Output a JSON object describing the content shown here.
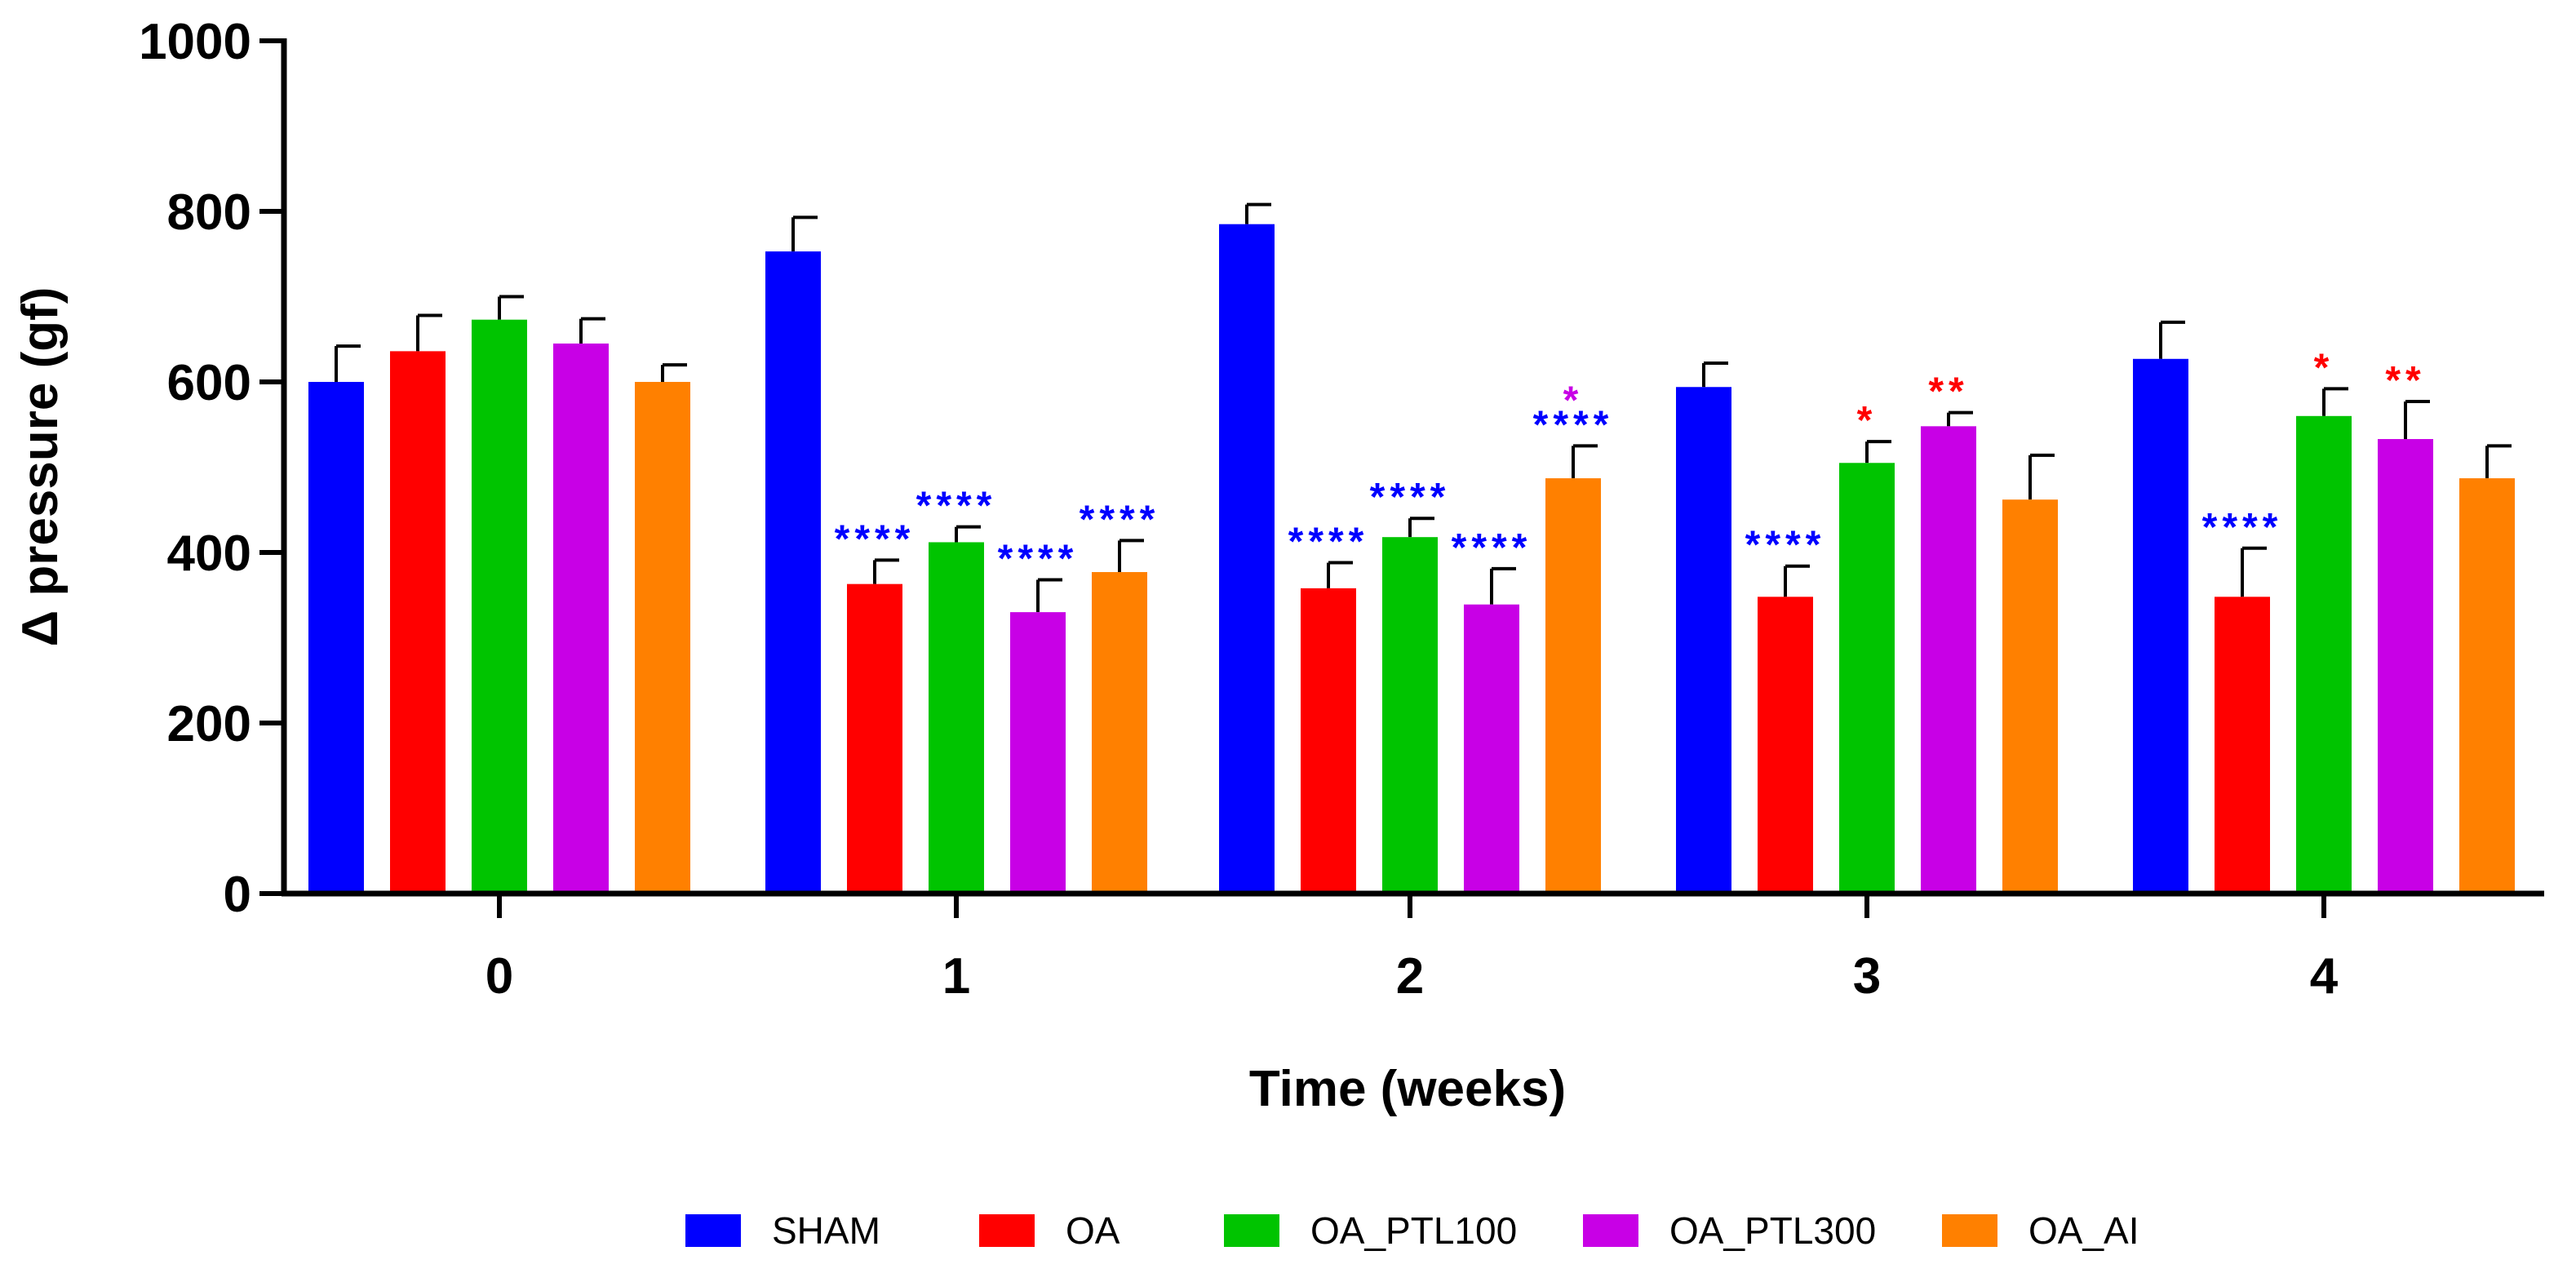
{
  "chart_data": {
    "type": "bar",
    "title": "",
    "xlabel": "Time (weeks)",
    "ylabel": "Δ pressure (gf)",
    "ylim": [
      0,
      1000
    ],
    "yticks": [
      "0",
      "200",
      "400",
      "600",
      "800",
      "1000"
    ],
    "categories": [
      "0",
      "1",
      "2",
      "3",
      "4"
    ],
    "series": [
      {
        "name": "SHAM",
        "color": "#0000ff",
        "values": [
          600,
          753,
          785,
          594,
          627
        ],
        "errors": [
          42,
          40,
          23,
          28,
          43
        ]
      },
      {
        "name": "OA",
        "color": "#ff0000",
        "values": [
          636,
          363,
          358,
          348,
          348
        ],
        "errors": [
          42,
          28,
          30,
          36,
          57
        ]
      },
      {
        "name": "OA_PTL100",
        "color": "#00c400",
        "values": [
          673,
          412,
          418,
          505,
          560
        ],
        "errors": [
          27,
          18,
          22,
          25,
          32
        ]
      },
      {
        "name": "OA_PTL300",
        "color": "#c800e6",
        "values": [
          645,
          330,
          339,
          548,
          533
        ],
        "errors": [
          29,
          38,
          42,
          16,
          44
        ]
      },
      {
        "name": "OA_AI",
        "color": "#ff8000",
        "values": [
          600,
          377,
          487,
          462,
          487
        ],
        "errors": [
          20,
          37,
          38,
          52,
          38
        ]
      }
    ],
    "annotations": [
      {
        "category": "1",
        "series": "OA",
        "lines": [
          {
            "text": "****",
            "color": "#0000ff"
          }
        ]
      },
      {
        "category": "1",
        "series": "OA_PTL100",
        "lines": [
          {
            "text": "****",
            "color": "#0000ff"
          }
        ]
      },
      {
        "category": "1",
        "series": "OA_PTL300",
        "lines": [
          {
            "text": "****",
            "color": "#0000ff"
          }
        ]
      },
      {
        "category": "1",
        "series": "OA_AI",
        "lines": [
          {
            "text": "****",
            "color": "#0000ff"
          }
        ]
      },
      {
        "category": "2",
        "series": "OA",
        "lines": [
          {
            "text": "****",
            "color": "#0000ff"
          }
        ]
      },
      {
        "category": "2",
        "series": "OA_PTL100",
        "lines": [
          {
            "text": "****",
            "color": "#0000ff"
          }
        ]
      },
      {
        "category": "2",
        "series": "OA_PTL300",
        "lines": [
          {
            "text": "****",
            "color": "#0000ff"
          }
        ]
      },
      {
        "category": "2",
        "series": "OA_AI",
        "lines": [
          {
            "text": "****",
            "color": "#0000ff"
          },
          {
            "text": "*",
            "color": "#c800e6"
          }
        ]
      },
      {
        "category": "3",
        "series": "OA",
        "lines": [
          {
            "text": "****",
            "color": "#0000ff"
          }
        ]
      },
      {
        "category": "3",
        "series": "OA_PTL100",
        "lines": [
          {
            "text": "*",
            "color": "#ff0000"
          }
        ]
      },
      {
        "category": "3",
        "series": "OA_PTL300",
        "lines": [
          {
            "text": "**",
            "color": "#ff0000"
          }
        ]
      },
      {
        "category": "4",
        "series": "OA",
        "lines": [
          {
            "text": "****",
            "color": "#0000ff"
          }
        ]
      },
      {
        "category": "4",
        "series": "OA_PTL100",
        "lines": [
          {
            "text": "*",
            "color": "#ff0000"
          }
        ]
      },
      {
        "category": "4",
        "series": "OA_PTL300",
        "lines": [
          {
            "text": "**",
            "color": "#ff0000"
          }
        ]
      }
    ],
    "grid": false,
    "legend_position": "bottom"
  }
}
